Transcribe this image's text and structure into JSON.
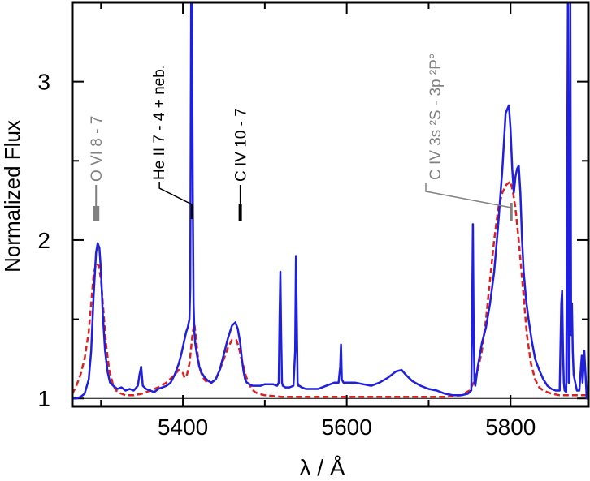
{
  "chart_data": {
    "type": "line",
    "title": "",
    "xlabel": "λ / Å",
    "ylabel": "Normalized Flux",
    "xlim": [
      5265,
      5895
    ],
    "ylim": [
      0.95,
      3.5
    ],
    "xticks": [
      5400,
      5600,
      5800
    ],
    "yticks": [
      1,
      2,
      3
    ],
    "xminor": [
      5300,
      5500,
      5700
    ],
    "yminor": [
      1.5,
      2.5
    ],
    "baseline": 1.0,
    "grid": false,
    "legend": "none",
    "colors": {
      "observed": "#1f1fe0",
      "model": "#e01f1f",
      "ion_black": "#000000",
      "ion_gray": "#808080"
    },
    "series": [
      {
        "style": "solid",
        "x": [
          5265,
          5270,
          5275,
          5280,
          5285,
          5288,
          5291,
          5294,
          5296,
          5298,
          5300,
          5302,
          5305,
          5308,
          5311,
          5315,
          5320,
          5325,
          5330,
          5335,
          5340,
          5345,
          5347,
          5349,
          5351,
          5355,
          5360,
          5365,
          5370,
          5375,
          5380,
          5385,
          5390,
          5395,
          5398,
          5401,
          5404,
          5406,
          5408,
          5409,
          5410,
          5411,
          5412,
          5413,
          5414,
          5415,
          5417,
          5420,
          5423,
          5427,
          5431,
          5435,
          5440,
          5445,
          5450,
          5455,
          5460,
          5464,
          5467,
          5470,
          5472,
          5474,
          5476,
          5478,
          5481,
          5485,
          5490,
          5495,
          5500,
          5505,
          5510,
          5515,
          5517,
          5518,
          5519,
          5520,
          5521,
          5522,
          5525,
          5530,
          5535,
          5537,
          5538,
          5539,
          5540,
          5541,
          5542,
          5545,
          5550,
          5555,
          5560,
          5565,
          5570,
          5575,
          5580,
          5585,
          5590,
          5592,
          5593,
          5594,
          5596,
          5600,
          5610,
          5620,
          5630,
          5640,
          5650,
          5660,
          5667,
          5672,
          5680,
          5690,
          5700,
          5710,
          5720,
          5730,
          5740,
          5748,
          5752,
          5753,
          5754,
          5755,
          5756,
          5757,
          5760,
          5765,
          5770,
          5775,
          5780,
          5785,
          5790,
          5794,
          5798,
          5800,
          5802,
          5804,
          5806,
          5808,
          5810,
          5812,
          5814,
          5816,
          5819,
          5822,
          5826,
          5830,
          5835,
          5840,
          5845,
          5850,
          5855,
          5860,
          5862,
          5863,
          5864,
          5865,
          5866,
          5868,
          5870,
          5871,
          5872,
          5873,
          5874,
          5875,
          5876,
          5877,
          5879,
          5881,
          5884,
          5886,
          5887,
          5888,
          5889,
          5890,
          5893,
          5895
        ],
        "y": [
          1.0,
          1.0,
          1.01,
          1.03,
          1.12,
          1.3,
          1.65,
          1.92,
          1.98,
          1.95,
          1.8,
          1.55,
          1.3,
          1.17,
          1.1,
          1.08,
          1.06,
          1.07,
          1.05,
          1.06,
          1.05,
          1.08,
          1.15,
          1.2,
          1.08,
          1.06,
          1.05,
          1.04,
          1.06,
          1.07,
          1.08,
          1.1,
          1.15,
          1.22,
          1.28,
          1.35,
          1.42,
          1.45,
          1.5,
          1.7,
          3.5,
          3.5,
          2.3,
          1.6,
          1.42,
          1.35,
          1.28,
          1.2,
          1.16,
          1.13,
          1.11,
          1.1,
          1.12,
          1.18,
          1.28,
          1.38,
          1.46,
          1.48,
          1.44,
          1.35,
          1.25,
          1.17,
          1.12,
          1.1,
          1.09,
          1.08,
          1.08,
          1.08,
          1.09,
          1.09,
          1.09,
          1.08,
          1.1,
          1.5,
          1.8,
          1.4,
          1.1,
          1.08,
          1.07,
          1.07,
          1.08,
          1.3,
          1.9,
          1.5,
          1.1,
          1.08,
          1.08,
          1.07,
          1.06,
          1.06,
          1.06,
          1.06,
          1.07,
          1.08,
          1.09,
          1.1,
          1.1,
          1.2,
          1.34,
          1.12,
          1.1,
          1.1,
          1.1,
          1.09,
          1.08,
          1.1,
          1.13,
          1.17,
          1.18,
          1.15,
          1.11,
          1.08,
          1.06,
          1.05,
          1.03,
          1.02,
          1.02,
          1.03,
          1.05,
          1.5,
          2.1,
          1.4,
          1.1,
          1.08,
          1.2,
          1.35,
          1.45,
          1.6,
          1.8,
          2.1,
          2.45,
          2.8,
          2.85,
          2.7,
          2.45,
          2.3,
          2.4,
          2.45,
          2.47,
          2.3,
          2.0,
          1.8,
          1.62,
          1.5,
          1.36,
          1.25,
          1.18,
          1.12,
          1.08,
          1.06,
          1.05,
          1.05,
          1.6,
          1.68,
          1.3,
          1.1,
          1.05,
          1.04,
          3.5,
          1.1,
          1.1,
          3.5,
          1.4,
          1.6,
          1.3,
          1.15,
          1.1,
          1.05,
          1.05,
          1.2,
          1.27,
          1.1,
          1.2,
          1.3,
          1.0,
          1.0
        ]
      },
      {
        "style": "dashed",
        "x": [
          5265,
          5270,
          5275,
          5280,
          5285,
          5288,
          5291,
          5294,
          5297,
          5300,
          5303,
          5306,
          5310,
          5315,
          5320,
          5330,
          5340,
          5350,
          5360,
          5370,
          5380,
          5390,
          5395,
          5400,
          5402,
          5405,
          5408,
          5410,
          5412,
          5414,
          5416,
          5418,
          5420,
          5423,
          5426,
          5430,
          5435,
          5440,
          5445,
          5450,
          5455,
          5460,
          5465,
          5468,
          5471,
          5474,
          5477,
          5480,
          5484,
          5488,
          5492,
          5500,
          5520,
          5540,
          5560,
          5580,
          5600,
          5640,
          5680,
          5720,
          5740,
          5750,
          5755,
          5760,
          5765,
          5770,
          5775,
          5780,
          5785,
          5790,
          5795,
          5800,
          5803,
          5806,
          5810,
          5815,
          5820,
          5825,
          5830,
          5835,
          5840,
          5850,
          5860,
          5870,
          5880,
          5890,
          5895
        ],
        "y": [
          1.03,
          1.08,
          1.15,
          1.25,
          1.42,
          1.6,
          1.78,
          1.85,
          1.84,
          1.75,
          1.55,
          1.35,
          1.18,
          1.08,
          1.04,
          1.02,
          1.02,
          1.03,
          1.05,
          1.07,
          1.1,
          1.15,
          1.18,
          1.16,
          1.13,
          1.15,
          1.22,
          1.32,
          1.42,
          1.47,
          1.38,
          1.28,
          1.2,
          1.15,
          1.12,
          1.1,
          1.1,
          1.12,
          1.18,
          1.25,
          1.32,
          1.37,
          1.37,
          1.33,
          1.26,
          1.2,
          1.14,
          1.1,
          1.06,
          1.04,
          1.03,
          1.02,
          1.01,
          1.01,
          1.01,
          1.01,
          1.01,
          1.01,
          1.01,
          1.01,
          1.02,
          1.05,
          1.1,
          1.18,
          1.3,
          1.5,
          1.75,
          2.0,
          2.2,
          2.3,
          2.35,
          2.37,
          2.3,
          2.2,
          2.0,
          1.7,
          1.4,
          1.22,
          1.12,
          1.07,
          1.05,
          1.03,
          1.02,
          1.02,
          1.02,
          1.02,
          1.02
        ]
      }
    ],
    "annotations": [
      {
        "text": "O VI 8 - 7",
        "x": 5293,
        "color": "#808080"
      },
      {
        "text": "He II 7 - 4 + neb.",
        "x": 5411,
        "color": "#000000"
      },
      {
        "text": "C IV 10 - 7",
        "x": 5470,
        "color": "#000000"
      },
      {
        "text": "C IV 3s ²S - 3p ²P°",
        "x": 5801,
        "color": "#808080"
      }
    ]
  }
}
